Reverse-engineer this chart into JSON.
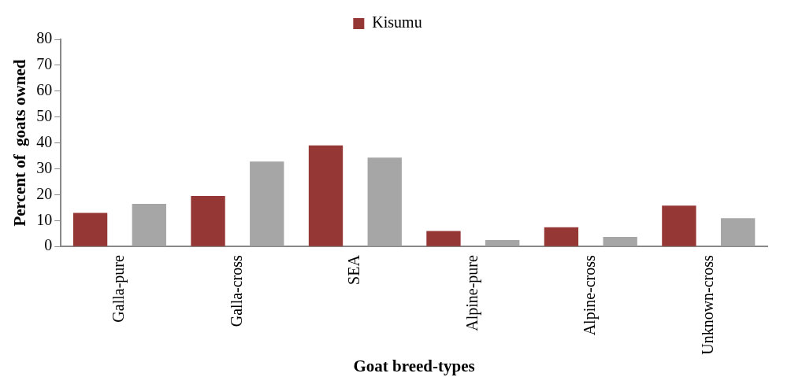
{
  "chart_data": {
    "type": "bar",
    "xlabel": "Goat breed-types",
    "ylabel": "Percent of  goats owned",
    "categories": [
      "Galla-pure",
      "Galla-cross",
      "SEA",
      "Alpine-pure",
      "Alpine-cross",
      "Unknown-cross"
    ],
    "series": [
      {
        "name": "Kisumu",
        "color": "#953735",
        "values": [
          13,
          19.5,
          39,
          6,
          7.4,
          15.8
        ]
      },
      {
        "color": "#a6a6a6",
        "values": [
          16.5,
          32.8,
          34.3,
          2.5,
          3.7,
          10.9
        ]
      }
    ],
    "ylim": [
      0,
      80
    ],
    "yticks": [
      0,
      10,
      20,
      30,
      40,
      50,
      60,
      70,
      80
    ],
    "grid": false,
    "legend": "top"
  }
}
